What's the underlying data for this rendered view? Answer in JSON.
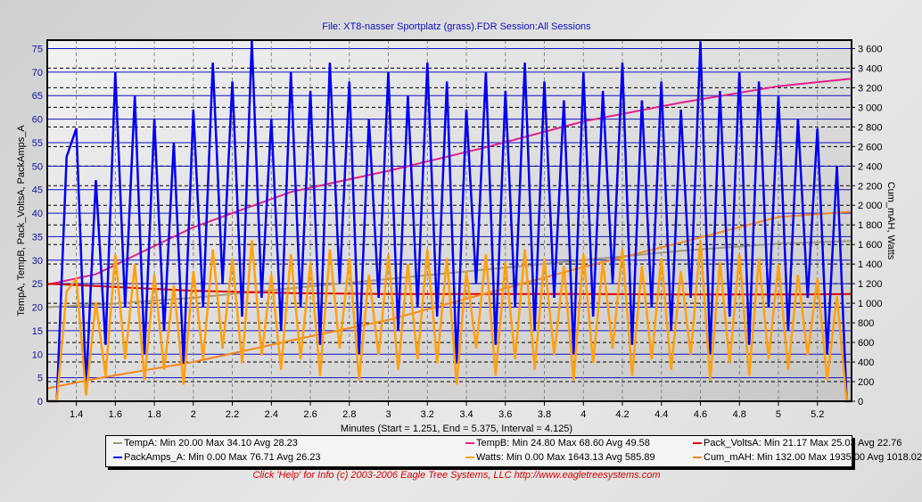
{
  "title": "File: XT8-nasser Sportplatz (grass).FDR   Session:All Sessions",
  "footer": "Click 'Help' for Info  (c) 2003-2006 Eagle Tree Systems, LLC     http://www.eagletreesystems.com",
  "chart_data": {
    "type": "line",
    "xlabel": "Minutes (Start = 1.251,  End = 5.375,  Interval =  4.125)",
    "ylabel_left": "TempA, TempB, Pack_VoltsA, PackAmps_A",
    "ylabel_right": "Cum_mAH, Watts",
    "xlim": [
      1.251,
      5.375
    ],
    "ylim_left": [
      0,
      76.8
    ],
    "ylim_right": [
      0,
      3686
    ],
    "x_ticks": [
      "1.4",
      "1.6",
      "1.8",
      "2",
      "2.2",
      "2.4",
      "2.6",
      "2.8",
      "3",
      "3.2",
      "3.4",
      "3.6",
      "3.8",
      "4",
      "4.2",
      "4.4",
      "4.6",
      "4.8",
      "5",
      "5.2"
    ],
    "y_left_ticks": [
      "0",
      "5",
      "10",
      "15",
      "20",
      "25",
      "30",
      "35",
      "40",
      "45",
      "50",
      "55",
      "60",
      "65",
      "70",
      "75"
    ],
    "y_right_ticks": [
      "0",
      "200",
      "400",
      "600",
      "800",
      "1 000",
      "1 200",
      "1 400",
      "1 600",
      "1 800",
      "2 000",
      "2 200",
      "2 400",
      "2 600",
      "2 800",
      "3 000",
      "3 200",
      "3 400",
      "3 600"
    ],
    "grid": true,
    "legend_placement": "bottom",
    "smooth_x": [
      1.25,
      1.5,
      2,
      2.5,
      3,
      3.5,
      4,
      4.5,
      5,
      5.375
    ],
    "noisy_x_start": 1.25,
    "noisy_x_step": 0.05,
    "series": [
      {
        "name": "TempA",
        "axis": "left",
        "color": "#a09a80",
        "x": "smooth",
        "values": [
          20,
          20.5,
          22,
          24,
          26,
          28,
          30,
          32,
          33.5,
          34.1
        ],
        "legend": "TempA:  Min 20.00   Max 34.10   Avg 28.23"
      },
      {
        "name": "TempB",
        "axis": "left",
        "color": "#e0208a",
        "x": "smooth",
        "values": [
          24.8,
          27,
          37,
          44.5,
          49,
          54,
          59.5,
          63.5,
          67,
          68.6
        ],
        "legend": "TempB:  Min 24.80   Max 68.60   Avg 49.58"
      },
      {
        "name": "Pack_VoltsA",
        "axis": "left",
        "color": "#e00000",
        "x": "smooth",
        "values": [
          25,
          24.5,
          23.5,
          23,
          22.8,
          22.8,
          22.8,
          22.7,
          22.7,
          22.8
        ],
        "legend": "Pack_VoltsA:  Min 21.17   Max 25.03   Avg 22.76"
      },
      {
        "name": "PackAmps_A",
        "axis": "left",
        "color": "#0000f0",
        "x": "noisy",
        "values": [
          0,
          0,
          52,
          58,
          3,
          47,
          12,
          70,
          20,
          65,
          10,
          60,
          15,
          55,
          8,
          62,
          20,
          72,
          25,
          68,
          18,
          76.7,
          22,
          60,
          15,
          70,
          20,
          66,
          12,
          72,
          25,
          68,
          10,
          60,
          22,
          70,
          15,
          65,
          20,
          72,
          18,
          68,
          8,
          62,
          25,
          70,
          12,
          66,
          20,
          72,
          15,
          68,
          22,
          64,
          10,
          70,
          18,
          66,
          25,
          72,
          12,
          64,
          20,
          68,
          15,
          62,
          22,
          76.5,
          10,
          66,
          18,
          70,
          12,
          68,
          20,
          65,
          15,
          60,
          22,
          58,
          10,
          50,
          0,
          0
        ],
        "legend": "PackAmps_A:  Min 0.00   Max 76.71   Avg 26.23"
      },
      {
        "name": "Watts",
        "axis": "right",
        "color": "#ffa010",
        "x": "noisy",
        "values": [
          0,
          0,
          1120,
          1250,
          60,
          1010,
          260,
          1500,
          430,
          1400,
          215,
          1290,
          320,
          1180,
          170,
          1330,
          430,
          1550,
          540,
          1460,
          390,
          1643,
          470,
          1290,
          320,
          1500,
          430,
          1420,
          260,
          1550,
          540,
          1460,
          215,
          1290,
          470,
          1500,
          320,
          1400,
          430,
          1550,
          390,
          1460,
          170,
          1330,
          540,
          1500,
          260,
          1420,
          430,
          1550,
          320,
          1460,
          470,
          1380,
          215,
          1500,
          390,
          1420,
          540,
          1550,
          260,
          1380,
          430,
          1460,
          320,
          1330,
          470,
          1640,
          215,
          1420,
          390,
          1500,
          260,
          1460,
          430,
          1400,
          320,
          1290,
          470,
          1250,
          215,
          1075,
          0,
          0
        ],
        "legend": "Watts:  Min 0.00   Max 1643.13   Avg 585.89"
      },
      {
        "name": "Cum_mAH",
        "axis": "right",
        "color": "#f08820",
        "x": "smooth",
        "values": [
          132,
          230,
          400,
          620,
          830,
          1100,
          1370,
          1620,
          1880,
          1935
        ],
        "legend": "Cum_mAH:  Min 132.00   Max 1935.00   Avg 1018.02"
      }
    ]
  }
}
